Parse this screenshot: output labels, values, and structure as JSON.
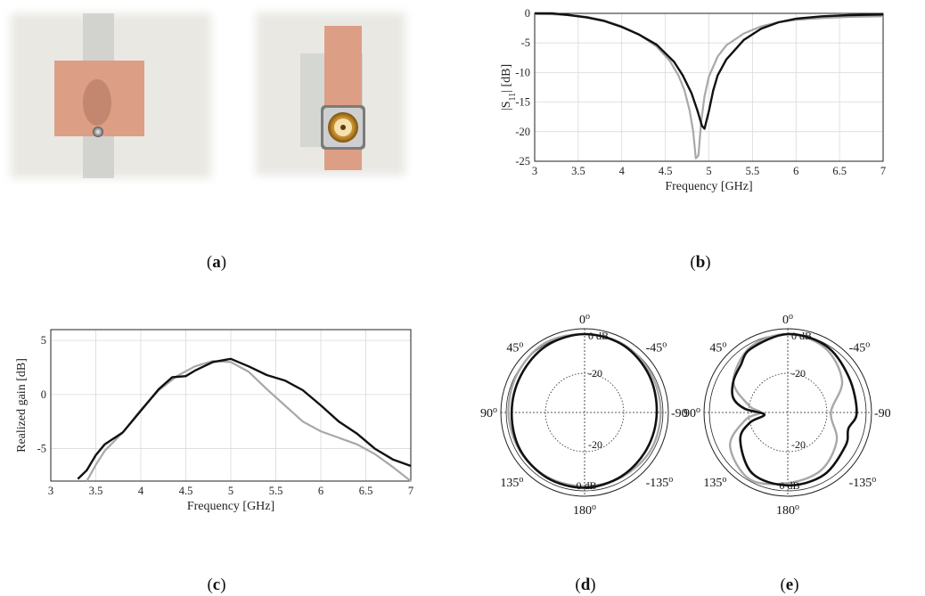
{
  "panels": {
    "a": {
      "label_open": "(",
      "letter": "a",
      "label_close": ")"
    },
    "b": {
      "label_open": "(",
      "letter": "b",
      "label_close": ")"
    },
    "c": {
      "label_open": "(",
      "letter": "c",
      "label_close": ")"
    },
    "d": {
      "label_open": "(",
      "letter": "d",
      "label_close": ")"
    },
    "e": {
      "label_open": "(",
      "letter": "e",
      "label_close": ")"
    }
  },
  "photo": {
    "substrate_color": "#e9e8e3",
    "copper_color": "#dd9e86",
    "ground_strip_color": "#c5c8c6"
  },
  "chart_data": [
    {
      "id": "b",
      "type": "line",
      "xlabel": "Frequency [GHz]",
      "ylabel_prefix": "|S",
      "ylabel_sub": "11",
      "ylabel_suffix": "| [dB]",
      "xlim": [
        3,
        7
      ],
      "ylim": [
        -25,
        0
      ],
      "xticks": [
        "3",
        "3.5",
        "4",
        "4.5",
        "5",
        "5.5",
        "6",
        "6.5",
        "7"
      ],
      "yticks": [
        "0",
        "-5",
        "-10",
        "-15",
        "-20",
        "-25"
      ],
      "grid": true,
      "series": [
        {
          "color": "#a8a8a8",
          "x": [
            3.0,
            3.2,
            3.4,
            3.6,
            3.8,
            4.0,
            4.2,
            4.4,
            4.55,
            4.65,
            4.72,
            4.78,
            4.82,
            4.85,
            4.88,
            4.91,
            4.95,
            5.0,
            5.1,
            5.2,
            5.4,
            5.6,
            5.8,
            6.0,
            6.3,
            6.6,
            7.0
          ],
          "y": [
            -0.1,
            -0.15,
            -0.3,
            -0.6,
            -1.2,
            -2.2,
            -3.6,
            -5.6,
            -8.0,
            -10.5,
            -13.0,
            -16.5,
            -20.0,
            -24.5,
            -24.0,
            -18.5,
            -14.0,
            -10.7,
            -7.3,
            -5.4,
            -3.4,
            -2.2,
            -1.5,
            -1.1,
            -0.8,
            -0.6,
            -0.5
          ]
        },
        {
          "color": "#111111",
          "x": [
            3.0,
            3.2,
            3.4,
            3.6,
            3.8,
            4.0,
            4.2,
            4.4,
            4.6,
            4.7,
            4.8,
            4.87,
            4.92,
            4.95,
            5.0,
            5.05,
            5.1,
            5.2,
            5.4,
            5.6,
            5.8,
            6.0,
            6.3,
            6.6,
            7.0
          ],
          "y": [
            0.1,
            0.0,
            -0.3,
            -0.7,
            -1.3,
            -2.3,
            -3.6,
            -5.3,
            -8.2,
            -10.5,
            -13.5,
            -16.5,
            -19.0,
            -19.5,
            -16.5,
            -13.0,
            -10.5,
            -7.8,
            -4.5,
            -2.6,
            -1.5,
            -0.9,
            -0.5,
            -0.3,
            -0.2
          ]
        }
      ]
    },
    {
      "id": "c",
      "type": "line",
      "xlabel": "Frequency [GHz]",
      "ylabel": "Realized gain [dB]",
      "xlim": [
        3,
        7
      ],
      "ylim": [
        -8,
        6
      ],
      "xticks": [
        "3",
        "3.5",
        "4",
        "4.5",
        "5",
        "5.5",
        "6",
        "6.5",
        "7"
      ],
      "ytick_values": [
        5,
        0,
        -5
      ],
      "yticks": [
        "5",
        "0",
        "-5"
      ],
      "grid": true,
      "series": [
        {
          "color": "#a8a8a8",
          "x": [
            3.4,
            3.5,
            3.6,
            3.8,
            4.0,
            4.2,
            4.4,
            4.6,
            4.8,
            5.0,
            5.2,
            5.4,
            5.6,
            5.8,
            6.0,
            6.2,
            6.4,
            6.6,
            6.8,
            7.0
          ],
          "y": [
            -8.0,
            -6.5,
            -5.2,
            -3.5,
            -1.4,
            0.4,
            1.7,
            2.6,
            3.1,
            3.0,
            2.1,
            0.5,
            -1.0,
            -2.5,
            -3.4,
            -4.0,
            -4.6,
            -5.5,
            -6.7,
            -8.0
          ]
        },
        {
          "color": "#111111",
          "x": [
            3.3,
            3.4,
            3.5,
            3.6,
            3.8,
            4.0,
            4.2,
            4.35,
            4.5,
            4.6,
            4.8,
            5.0,
            5.2,
            5.4,
            5.6,
            5.8,
            6.0,
            6.2,
            6.4,
            6.6,
            6.8,
            7.0
          ],
          "y": [
            -7.8,
            -7.0,
            -5.6,
            -4.6,
            -3.5,
            -1.5,
            0.5,
            1.6,
            1.7,
            2.2,
            3.0,
            3.3,
            2.6,
            1.8,
            1.3,
            0.4,
            -1.0,
            -2.5,
            -3.6,
            -5.0,
            -6.0,
            -6.6
          ]
        }
      ]
    },
    {
      "id": "d",
      "type": "polar",
      "angle_labels": {
        "top": "0",
        "top_left": "45",
        "top_right": "-45",
        "left": "90",
        "right": "-90",
        "bottom_left": "135",
        "bottom_right": "-135",
        "bottom": "180"
      },
      "deg": "o",
      "ring_labels": {
        "outer_top": "0 dB",
        "inner_top": "-20",
        "inner_bottom": "-20",
        "outer_bottom": "0 dB"
      },
      "series": [
        {
          "color": "#a8a8a8",
          "angles": [
            0,
            30,
            60,
            90,
            120,
            150,
            180,
            210,
            240,
            270,
            300,
            330
          ],
          "radius": [
            1.0,
            1.02,
            0.99,
            0.97,
            0.96,
            0.95,
            0.94,
            0.95,
            0.97,
            0.97,
            0.98,
            1.0
          ]
        },
        {
          "color": "#111111",
          "angles": [
            0,
            30,
            60,
            90,
            120,
            150,
            180,
            210,
            240,
            270,
            300,
            330
          ],
          "radius": [
            1.0,
            0.98,
            0.94,
            0.93,
            0.95,
            0.96,
            0.96,
            0.94,
            0.92,
            0.92,
            0.95,
            0.99
          ]
        }
      ]
    },
    {
      "id": "e",
      "type": "polar",
      "angle_labels": {
        "top": "0",
        "top_left": "45",
        "top_right": "-45",
        "left": "90",
        "right": "-90",
        "bottom_left": "135",
        "bottom_right": "-135",
        "bottom": "180"
      },
      "deg": "o",
      "ring_labels": {
        "outer_top": "0 dB",
        "inner_top": "-20",
        "inner_bottom": "-20",
        "outer_bottom": "0 dB"
      },
      "series": [
        {
          "color": "#a8a8a8",
          "angles": [
            0,
            30,
            60,
            80,
            90,
            100,
            120,
            150,
            180,
            210,
            240,
            270,
            300,
            330
          ],
          "radius": [
            1.0,
            0.96,
            0.8,
            0.5,
            0.35,
            0.55,
            0.85,
            0.98,
            0.9,
            0.85,
            0.72,
            0.55,
            0.8,
            0.95
          ]
        },
        {
          "color": "#111111",
          "angles": [
            0,
            30,
            45,
            60,
            75,
            85,
            95,
            105,
            120,
            150,
            180,
            210,
            240,
            255,
            270,
            300,
            330
          ],
          "radius": [
            1.0,
            0.94,
            0.85,
            0.8,
            0.72,
            0.55,
            0.3,
            0.5,
            0.7,
            0.9,
            0.93,
            0.92,
            0.85,
            0.8,
            0.88,
            0.9,
            0.98
          ]
        }
      ]
    }
  ]
}
